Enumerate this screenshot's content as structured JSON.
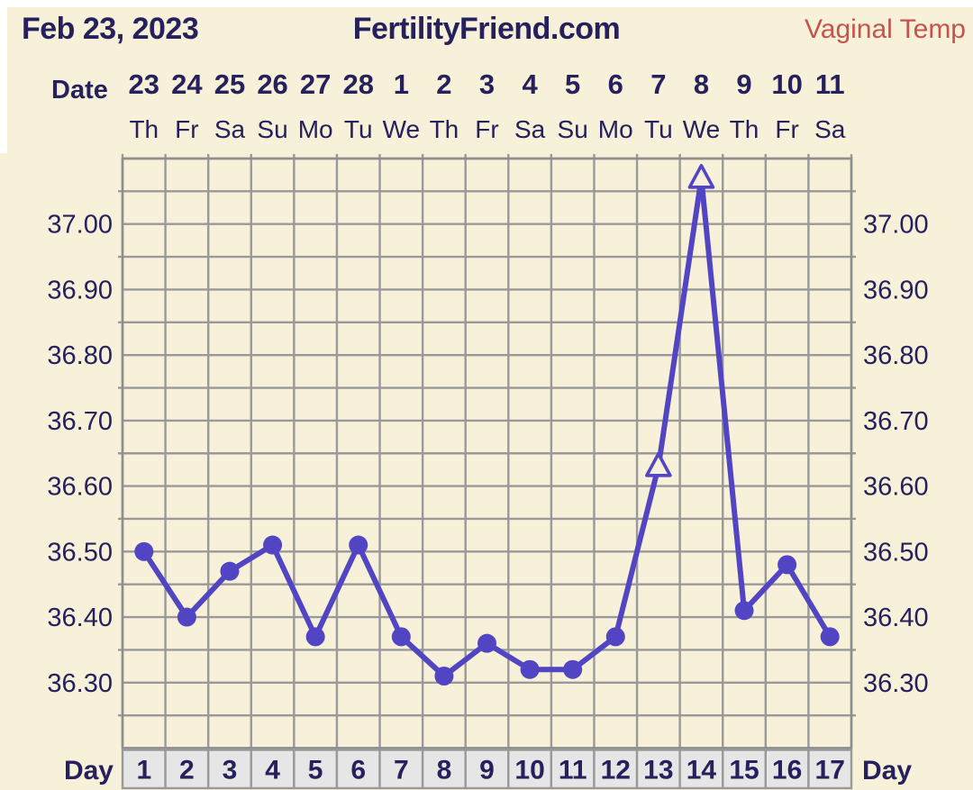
{
  "header": {
    "date": "Feb 23, 2023",
    "site": "FertilityFriend.com",
    "series": "Vaginal Temp"
  },
  "axes": {
    "date_row_label": "Date",
    "day_row_label": "Day"
  },
  "colors": {
    "background": "#f6f1d8",
    "top_border": "#ffffff",
    "text_navy": "#26205c",
    "series_red": "#c5544e",
    "grid_line": "#999999",
    "grid_border": "#8f8f8f",
    "line_purple": "#5145c4",
    "marker_fill": "#5145c4",
    "triangle_fill": "#f6f1d8",
    "day_strip_bg": "#e6e6e6"
  },
  "chart_data": {
    "type": "line",
    "title": "FertilityFriend.com",
    "subtitle": "Feb 23, 2023",
    "ylabel": "Vaginal Temp",
    "x_cycle_days": [
      "1",
      "2",
      "3",
      "4",
      "5",
      "6",
      "7",
      "8",
      "9",
      "10",
      "11",
      "12",
      "13",
      "14",
      "15",
      "16",
      "17"
    ],
    "x_dates": [
      "23",
      "24",
      "25",
      "26",
      "27",
      "28",
      "1",
      "2",
      "3",
      "4",
      "5",
      "6",
      "7",
      "8",
      "9",
      "10",
      "11"
    ],
    "x_weekdays": [
      "Th",
      "Fr",
      "Sa",
      "Su",
      "Mo",
      "Tu",
      "We",
      "Th",
      "Fr",
      "Sa",
      "Su",
      "Mo",
      "Tu",
      "We",
      "Th",
      "Fr",
      "Sa"
    ],
    "values": [
      36.5,
      36.4,
      36.47,
      36.51,
      36.37,
      36.51,
      36.37,
      36.31,
      36.36,
      36.32,
      36.32,
      36.37,
      36.63,
      37.07,
      36.41,
      36.48,
      36.37
    ],
    "marker_types": [
      "circle",
      "circle",
      "circle",
      "circle",
      "circle",
      "circle",
      "circle",
      "circle",
      "circle",
      "circle",
      "circle",
      "circle",
      "triangle",
      "triangle",
      "circle",
      "circle",
      "circle"
    ],
    "y_tick_labels": [
      "37.00",
      "36.90",
      "36.80",
      "36.70",
      "36.60",
      "36.50",
      "36.40",
      "36.30"
    ],
    "ylim": [
      36.2,
      37.1
    ],
    "y_minor_step": 0.05,
    "grid": true,
    "axis_label_sides": "both",
    "legend_position": "none"
  }
}
